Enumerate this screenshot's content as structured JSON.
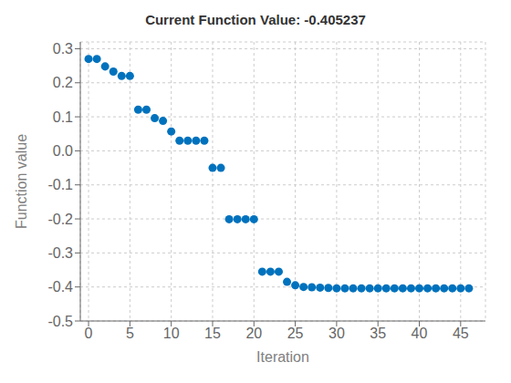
{
  "chart_data": {
    "type": "scatter",
    "title": "Current Function Value: -0.405237",
    "xlabel": "Iteration",
    "ylabel": "Function value",
    "x": [
      0,
      1,
      2,
      3,
      4,
      5,
      6,
      7,
      8,
      9,
      10,
      11,
      12,
      13,
      14,
      15,
      16,
      17,
      18,
      19,
      20,
      21,
      22,
      23,
      24,
      25,
      26,
      27,
      28,
      29,
      30,
      31,
      32,
      33,
      34,
      35,
      36,
      37,
      38,
      39,
      40,
      41,
      42,
      43,
      44,
      45,
      46
    ],
    "values": [
      0.27,
      0.27,
      0.248,
      0.233,
      0.22,
      0.22,
      0.121,
      0.121,
      0.096,
      0.088,
      0.057,
      0.03,
      0.03,
      0.03,
      0.03,
      -0.05,
      -0.05,
      -0.201,
      -0.201,
      -0.201,
      -0.201,
      -0.355,
      -0.355,
      -0.355,
      -0.385,
      -0.395,
      -0.4,
      -0.401,
      -0.402,
      -0.403,
      -0.404,
      -0.404,
      -0.404,
      -0.404,
      -0.404,
      -0.404,
      -0.404,
      -0.404,
      -0.404,
      -0.404,
      -0.404,
      -0.404,
      -0.404,
      -0.404,
      -0.404,
      -0.404,
      -0.404
    ],
    "color": "#0072BD",
    "xlim": [
      -1,
      48
    ],
    "ylim": [
      -0.5,
      0.32
    ],
    "xticks": [
      0,
      5,
      10,
      15,
      20,
      25,
      30,
      35,
      40,
      45
    ],
    "yticks": [
      -0.5,
      -0.4,
      -0.3,
      -0.2,
      -0.1,
      {
        "value": 0,
        "label": "0.0"
      },
      0.1,
      0.2,
      0.3
    ],
    "grid": true
  }
}
